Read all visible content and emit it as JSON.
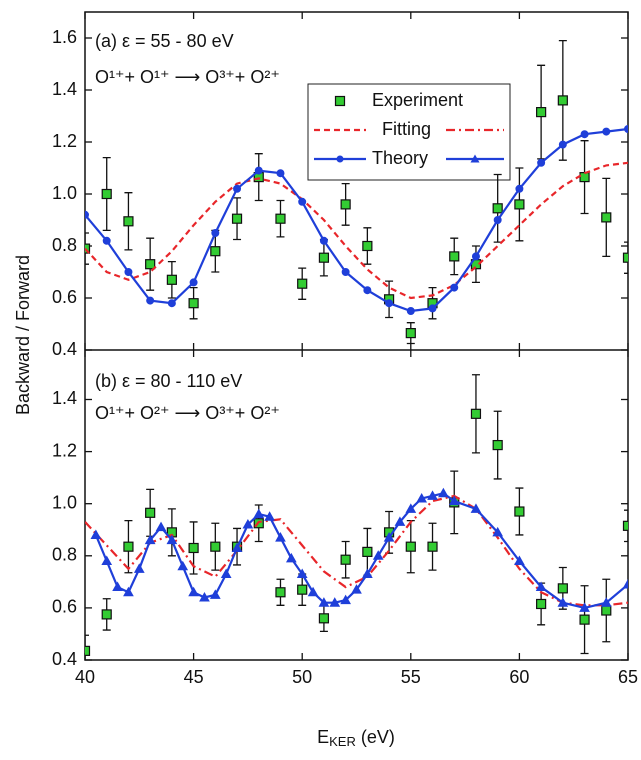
{
  "chart_data": [
    {
      "type": "line",
      "panel_label": "(a) ε = 55 - 80 eV",
      "reaction": "O¹⁺+ O¹⁺ ⟶ O³⁺+ O²⁺",
      "ylim": [
        0.4,
        1.7
      ],
      "yticks": [
        0.4,
        0.6,
        0.8,
        {
          "value": 1,
          "label": "1.0"
        },
        1.2,
        1.4,
        1.6
      ],
      "xlim": [
        40,
        65
      ],
      "series": [
        {
          "name": "Experiment",
          "color": "#33cc33",
          "marker": "square",
          "line": "none",
          "x": [
            40,
            41,
            42,
            43,
            44,
            45,
            46,
            47,
            48,
            49,
            50,
            51,
            52,
            53,
            54,
            55,
            56,
            57,
            58,
            59,
            60,
            61,
            62,
            63,
            64,
            65
          ],
          "values": [
            0.79,
            1.0,
            0.895,
            0.73,
            0.67,
            0.58,
            0.78,
            0.905,
            1.065,
            0.905,
            0.655,
            0.755,
            0.96,
            0.8,
            0.595,
            0.465,
            0.58,
            0.76,
            0.73,
            0.945,
            0.96,
            1.315,
            1.36,
            1.065,
            0.91,
            0.755
          ],
          "errors": [
            0.06,
            0.14,
            0.11,
            0.1,
            0.07,
            0.06,
            0.08,
            0.08,
            0.09,
            0.07,
            0.06,
            0.07,
            0.08,
            0.07,
            0.07,
            0.04,
            0.06,
            0.07,
            0.07,
            0.13,
            0.14,
            0.18,
            0.23,
            0.14,
            0.15,
            0.06
          ]
        },
        {
          "name": "Fitting",
          "color": "#e8262a",
          "line": "dashed",
          "x": [
            40,
            41,
            42,
            43,
            44,
            45,
            46,
            47,
            48,
            49,
            50,
            51,
            52,
            53,
            54,
            55,
            56,
            57,
            58,
            59,
            60,
            61,
            62,
            63,
            64,
            65
          ],
          "values": [
            0.79,
            0.7,
            0.67,
            0.7,
            0.78,
            0.88,
            0.97,
            1.04,
            1.06,
            1.04,
            0.98,
            0.9,
            0.8,
            0.71,
            0.64,
            0.6,
            0.61,
            0.65,
            0.72,
            0.8,
            0.88,
            0.96,
            1.03,
            1.08,
            1.11,
            1.12
          ]
        },
        {
          "name": "Theory",
          "color": "#1f3fd9",
          "marker": "circle",
          "line": "solid",
          "x": [
            40,
            41,
            42,
            43,
            44,
            45,
            46,
            47,
            48,
            49,
            50,
            51,
            52,
            53,
            54,
            55,
            56,
            57,
            58,
            59,
            60,
            61,
            62,
            63,
            64,
            65
          ],
          "values": [
            0.92,
            0.82,
            0.7,
            0.59,
            0.58,
            0.66,
            0.85,
            1.02,
            1.09,
            1.08,
            0.97,
            0.82,
            0.7,
            0.63,
            0.58,
            0.55,
            0.56,
            0.64,
            0.76,
            0.9,
            1.02,
            1.12,
            1.19,
            1.23,
            1.24,
            1.25
          ]
        }
      ]
    },
    {
      "type": "line",
      "panel_label": "(b) ε = 80 - 110 eV",
      "reaction": "O¹⁺+ O²⁺ ⟶ O³⁺+ O²⁺",
      "ylim": [
        0.4,
        1.59
      ],
      "yticks": [
        0.4,
        0.6,
        0.8,
        {
          "value": 1,
          "label": "1.0"
        },
        1.2,
        1.4
      ],
      "xlim": [
        40,
        65
      ],
      "xticks": [
        40,
        45,
        50,
        55,
        60,
        65
      ],
      "xlabel": "E",
      "xlabel_sub": "KER",
      "xlabel_unit": " (eV)",
      "ylabel": "Backward / Forward",
      "series": [
        {
          "color": "#33cc33",
          "marker": "square",
          "line": "none",
          "x": [
            40,
            41,
            42,
            43,
            44,
            45,
            46,
            47,
            48,
            49,
            50,
            51,
            52,
            53,
            54,
            55,
            56,
            57,
            58,
            59,
            60,
            61,
            62,
            63,
            64,
            65
          ],
          "values": [
            0.435,
            0.575,
            0.835,
            0.965,
            0.89,
            0.83,
            0.835,
            0.835,
            0.925,
            0.66,
            0.67,
            0.56,
            0.785,
            0.815,
            0.89,
            0.835,
            0.835,
            1.005,
            1.345,
            1.225,
            0.97,
            0.615,
            0.675,
            0.555,
            0.59,
            0.915
          ],
          "errors": [
            0.06,
            0.06,
            0.1,
            0.09,
            0.09,
            0.1,
            0.09,
            0.07,
            0.07,
            0.05,
            0.06,
            0.05,
            0.07,
            0.09,
            0.08,
            0.1,
            0.09,
            0.12,
            0.15,
            0.13,
            0.09,
            0.08,
            0.08,
            0.13,
            0.12,
            0.06
          ]
        },
        {
          "color": "#e8262a",
          "line": "dashdot",
          "x": [
            40,
            41,
            42,
            43,
            44,
            45,
            46,
            47,
            48,
            49,
            50,
            51,
            52,
            53,
            54,
            55,
            56,
            57,
            58,
            59,
            60,
            61,
            62,
            63,
            64,
            65
          ],
          "values": [
            0.93,
            0.84,
            0.75,
            0.85,
            0.88,
            0.76,
            0.72,
            0.82,
            0.93,
            0.94,
            0.84,
            0.74,
            0.68,
            0.72,
            0.82,
            0.93,
            1.01,
            1.03,
            0.98,
            0.87,
            0.75,
            0.66,
            0.62,
            0.61,
            0.61,
            0.62
          ]
        },
        {
          "color": "#1f3fd9",
          "marker": "triangle",
          "line": "solid",
          "x": [
            40.5,
            41,
            41.5,
            42,
            42.5,
            43,
            43.5,
            44,
            44.5,
            45,
            45.5,
            46,
            46.5,
            47,
            47.5,
            48,
            48.5,
            49,
            49.5,
            50,
            50.5,
            51,
            51.5,
            52,
            52.5,
            53,
            53.5,
            54,
            54.5,
            55,
            55.5,
            56,
            56.5,
            57,
            58,
            59,
            60,
            61,
            62,
            63,
            64,
            65
          ],
          "values": [
            0.88,
            0.78,
            0.68,
            0.66,
            0.75,
            0.86,
            0.91,
            0.86,
            0.76,
            0.66,
            0.64,
            0.65,
            0.73,
            0.83,
            0.92,
            0.96,
            0.95,
            0.87,
            0.79,
            0.73,
            0.66,
            0.62,
            0.62,
            0.63,
            0.67,
            0.73,
            0.8,
            0.87,
            0.93,
            0.98,
            1.02,
            1.03,
            1.04,
            1.01,
            0.98,
            0.89,
            0.78,
            0.68,
            0.62,
            0.6,
            0.62,
            0.69
          ]
        }
      ]
    }
  ]
}
